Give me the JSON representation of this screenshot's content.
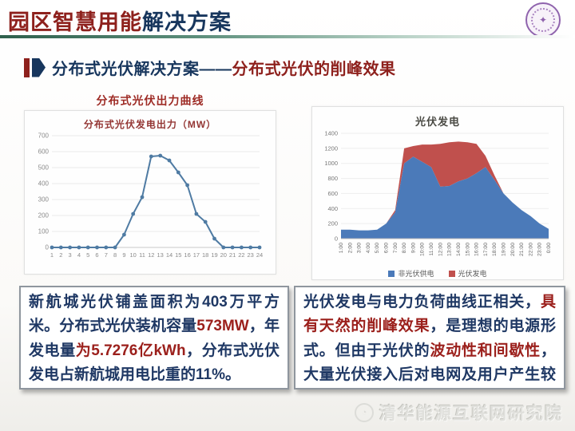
{
  "slide": {
    "title": {
      "part_red": "园区智慧用能",
      "part_blue": "解决方案"
    },
    "subtitle": {
      "part_blue": "分布式光伏解决方案——",
      "part_red": "分布式光伏的削峰效果"
    },
    "left_caption": "分布式光伏出力曲线",
    "footer_org": "清华能源互联网研究院"
  },
  "colors": {
    "navy": "#1f3864",
    "red": "#9b1f1b"
  },
  "text_boxes": {
    "left": {
      "segments": [
        {
          "text": "新航城光伏铺盖面积为403万平方米。分布式光伏装机容量",
          "color": "navy"
        },
        {
          "text": "573MW",
          "color": "red"
        },
        {
          "text": "，年发电量",
          "color": "navy"
        },
        {
          "text": "为5.7276亿kWh",
          "color": "red"
        },
        {
          "text": "，分布式光伏发电占新航城用电比重的11%。",
          "color": "navy"
        }
      ]
    },
    "right": {
      "segments": [
        {
          "text": "光伏发电与电力负荷曲线正相关，",
          "color": "navy"
        },
        {
          "text": "具有天然的削峰效果",
          "color": "red"
        },
        {
          "text": "，是理想的电源形式。但由于光伏的",
          "color": "navy"
        },
        {
          "text": "波动性和间歇性",
          "color": "red"
        },
        {
          "text": "，大量光伏接入后对电网及用户产生较大影响。",
          "color": "navy"
        }
      ]
    }
  },
  "chart_data": [
    {
      "type": "line",
      "title": "分布式光伏发电出力（MW）",
      "x": [
        1,
        2,
        3,
        4,
        5,
        6,
        7,
        8,
        9,
        10,
        11,
        12,
        13,
        14,
        15,
        16,
        17,
        18,
        19,
        20,
        21,
        22,
        23,
        24
      ],
      "values": [
        0,
        0,
        0,
        0,
        0,
        0,
        0,
        0,
        80,
        210,
        315,
        570,
        575,
        545,
        470,
        390,
        210,
        160,
        55,
        0,
        0,
        0,
        0,
        0
      ],
      "xlabel": "",
      "ylabel": "",
      "ylim": [
        0,
        700
      ],
      "ytick_step": 100,
      "grid": true,
      "line_color": "#4f7ba3"
    },
    {
      "type": "area",
      "stacked": true,
      "title": "光伏发电",
      "categories": [
        "1:00",
        "2:00",
        "3:00",
        "4:00",
        "5:00",
        "6:00",
        "7:00",
        "8:00",
        "9:00",
        "10:00",
        "11:00",
        "12:00",
        "13:00",
        "14:00",
        "15:00",
        "16:00",
        "17:00",
        "18:00",
        "19:00",
        "20:00",
        "21:00",
        "22:00",
        "23:00",
        "0:00"
      ],
      "series": [
        {
          "name": "非光伏供电",
          "color": "#4b7ab9",
          "values": [
            120,
            120,
            110,
            110,
            120,
            200,
            350,
            1000,
            1090,
            1020,
            950,
            690,
            700,
            760,
            800,
            870,
            950,
            780,
            600,
            480,
            380,
            300,
            200,
            130
          ]
        },
        {
          "name": "光伏发电",
          "color": "#c0504d",
          "values": [
            0,
            0,
            0,
            0,
            0,
            0,
            30,
            200,
            140,
            230,
            300,
            570,
            580,
            530,
            480,
            390,
            150,
            60,
            0,
            0,
            0,
            0,
            0,
            0
          ]
        }
      ],
      "ylim": [
        0,
        1400
      ],
      "ytick_step": 200,
      "grid": true,
      "legend_position": "bottom"
    }
  ]
}
